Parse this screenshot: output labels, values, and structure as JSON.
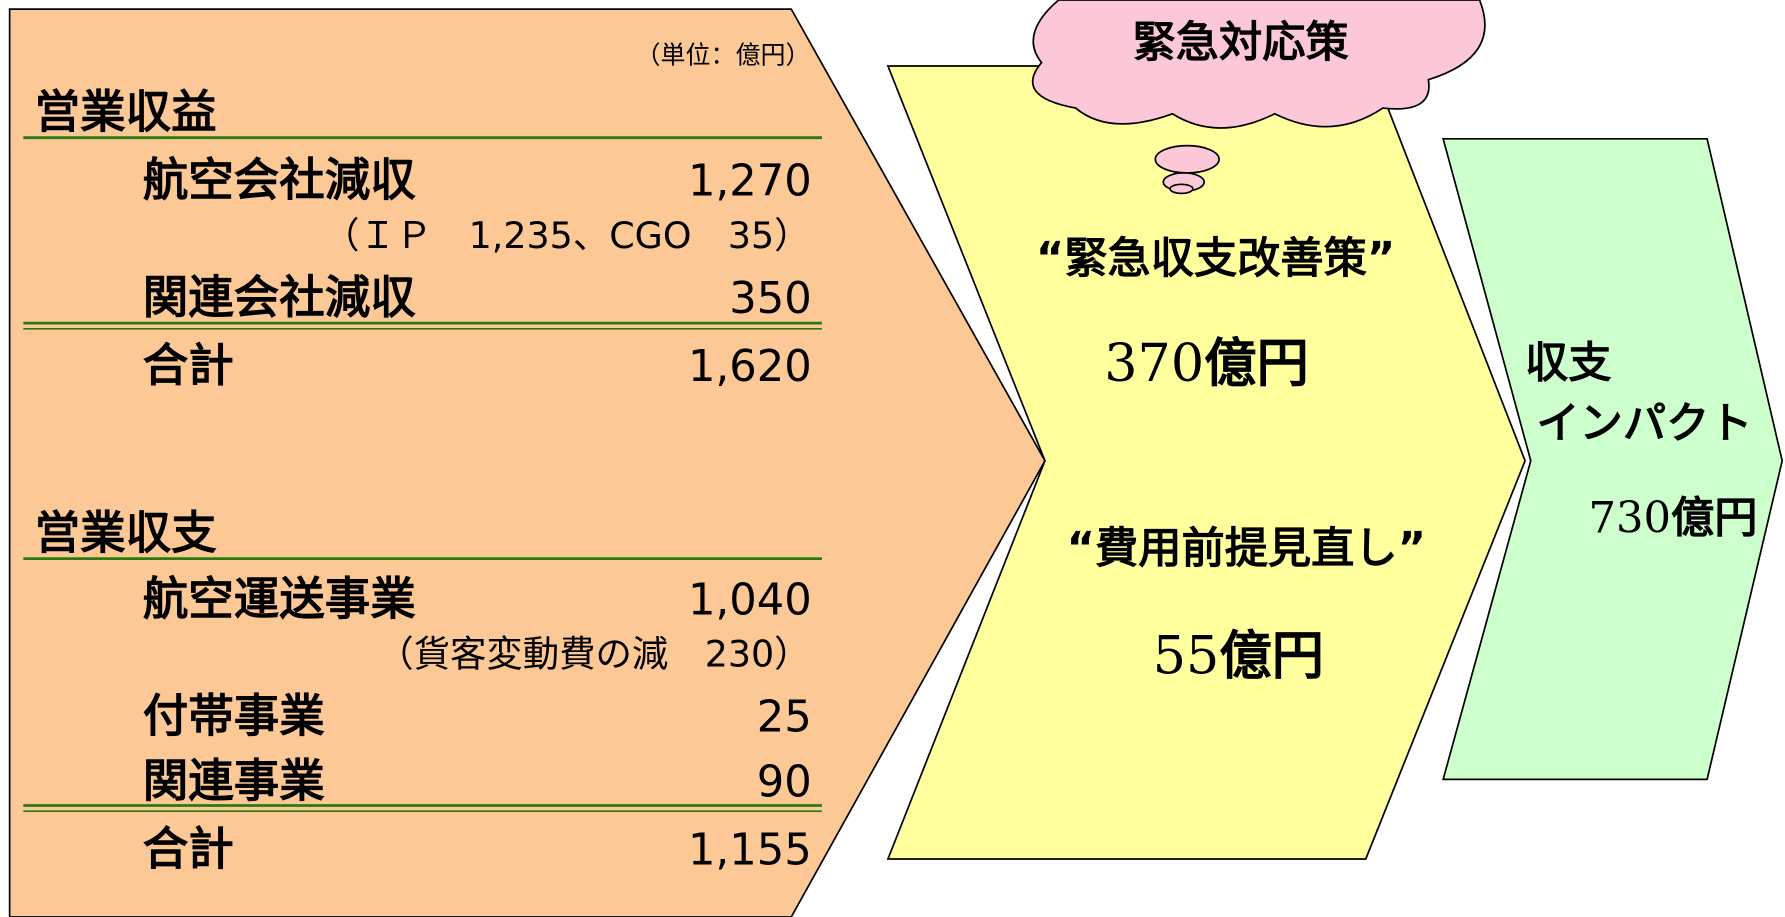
{
  "unit": "（単位：億円）",
  "revenue": {
    "heading": "営業収益",
    "items": [
      {
        "label": "航空会社減収",
        "value": "1,270"
      },
      {
        "label": "関連会社減収",
        "value": "350"
      }
    ],
    "note": "（ＩＰ　1,235、CGO　35）",
    "total": {
      "label": "合計",
      "value": "1,620"
    }
  },
  "profit": {
    "heading": "営業収支",
    "items": [
      {
        "label": "航空運送事業",
        "value": "1,040"
      },
      {
        "label": "付帯事業",
        "value": "25"
      },
      {
        "label": "関連事業",
        "value": "90"
      }
    ],
    "note": "（貨客変動費の減　230）",
    "total": {
      "label": "合計",
      "value": "1,155"
    }
  },
  "cloud": "緊急対応策",
  "measures": [
    {
      "name": "“緊急収支改善策”",
      "amount": "370",
      "unit": "億円"
    },
    {
      "name": "“費用前提見直し”",
      "amount": "55",
      "unit": "億円"
    }
  ],
  "impact": {
    "lines": [
      "収支",
      "インパクト"
    ],
    "amount": "730",
    "unit": "億円"
  }
}
